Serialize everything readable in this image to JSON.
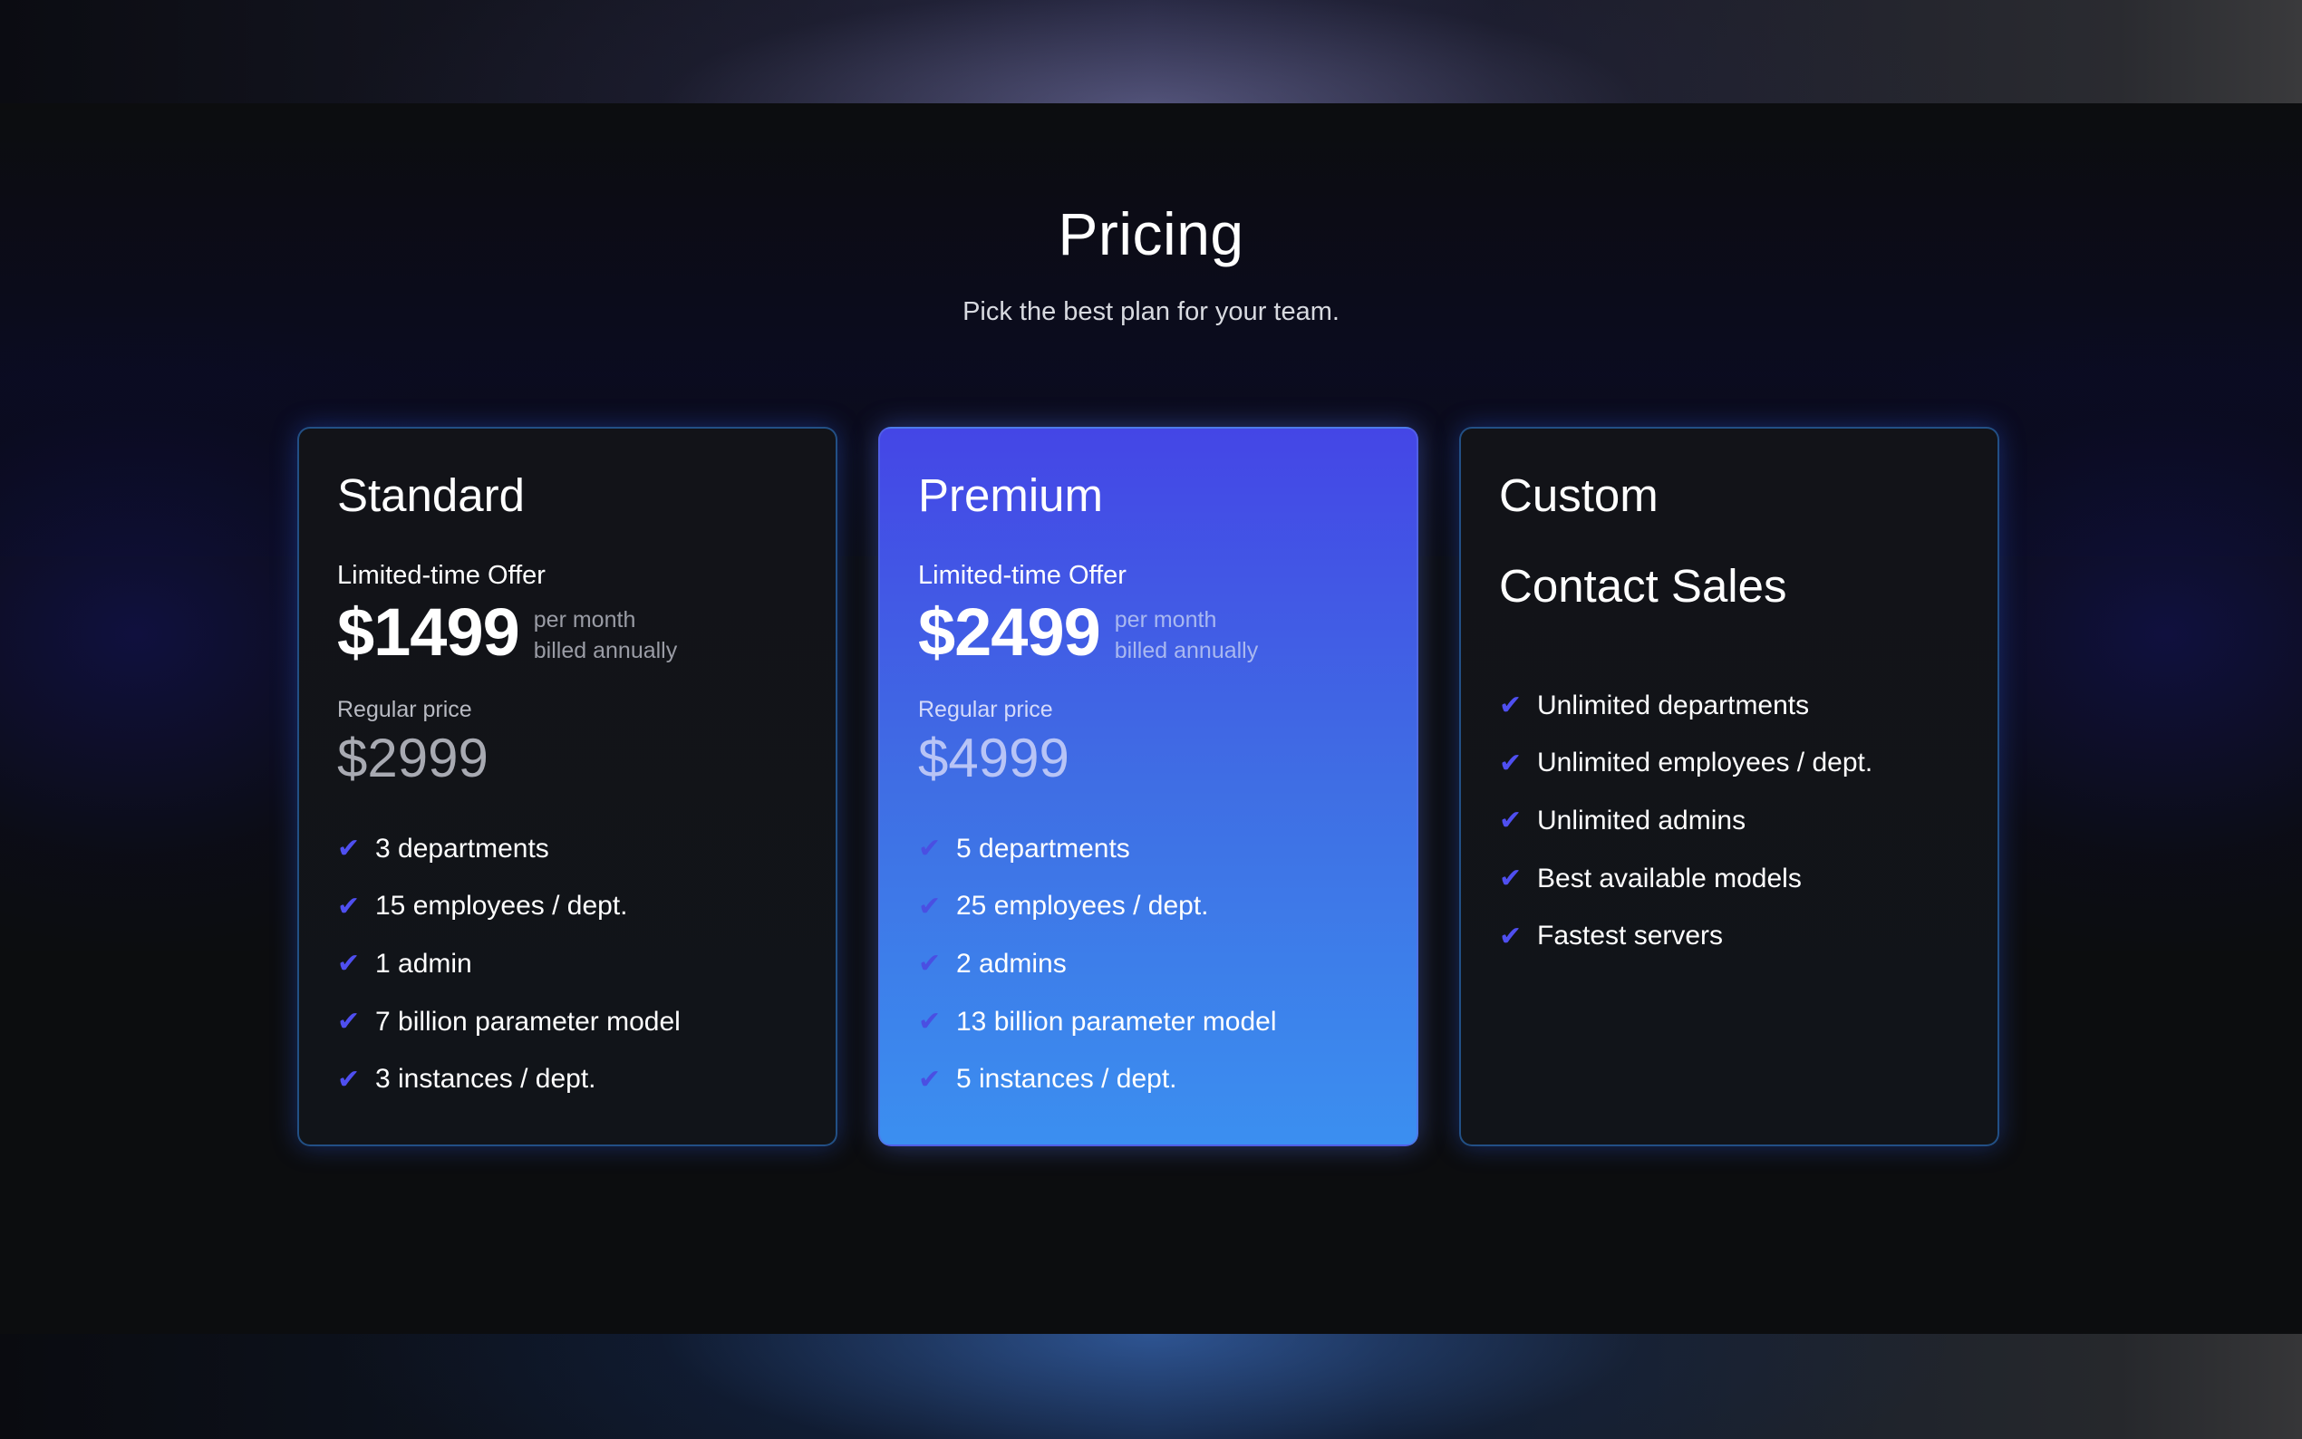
{
  "header": {
    "title": "Pricing",
    "subtitle": "Pick the best plan for your team."
  },
  "plans": [
    {
      "name": "Standard",
      "offer_label": "Limited-time Offer",
      "price": "$1499",
      "price_note_line1": "per month",
      "price_note_line2": "billed annually",
      "regular_label": "Regular price",
      "regular_price": "$2999",
      "features": [
        "3 departments",
        "15 employees / dept.",
        "1 admin",
        "7 billion parameter model",
        "3 instances / dept."
      ]
    },
    {
      "name": "Premium",
      "offer_label": "Limited-time Offer",
      "price": "$2499",
      "price_note_line1": "per month",
      "price_note_line2": "billed annually",
      "regular_label": "Regular price",
      "regular_price": "$4999",
      "features": [
        "5 departments",
        "25 employees / dept.",
        "2 admins",
        "13 billion parameter model",
        "5 instances / dept."
      ]
    },
    {
      "name": "Custom",
      "contact_label": "Contact Sales",
      "features": [
        "Unlimited departments",
        "Unlimited employees / dept.",
        "Unlimited admins",
        "Best available models",
        "Fastest servers"
      ]
    }
  ],
  "icons": {
    "check": "check-icon",
    "check_glyph": "✔"
  },
  "colors": {
    "accent": "#4f4ff0",
    "premium_gradient_top": "#4446e6",
    "premium_gradient_bottom": "#3b8ff0",
    "card_border": "#2864aa"
  }
}
